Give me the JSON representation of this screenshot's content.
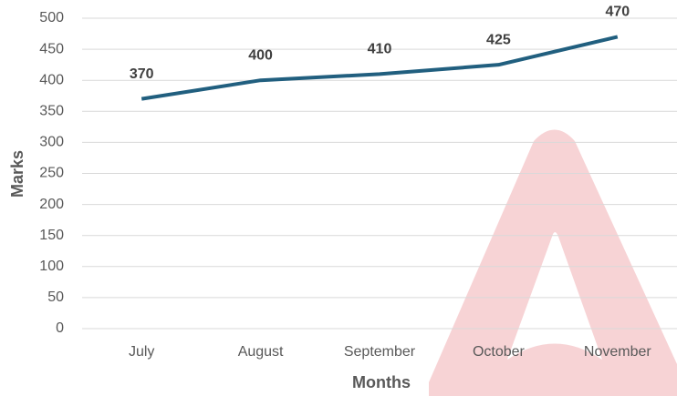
{
  "chart_data": {
    "type": "line",
    "categories": [
      "July",
      "August",
      "September",
      "October",
      "November"
    ],
    "series": [
      {
        "name": "Marks",
        "color": "#215f7f",
        "values": [
          370,
          400,
          410,
          425,
          470
        ]
      }
    ],
    "xlabel": "Months",
    "ylabel": "Marks",
    "ylim": [
      0,
      500
    ],
    "yticks": [
      0,
      50,
      100,
      150,
      200,
      250,
      300,
      350,
      400,
      450,
      500
    ],
    "grid": true
  }
}
